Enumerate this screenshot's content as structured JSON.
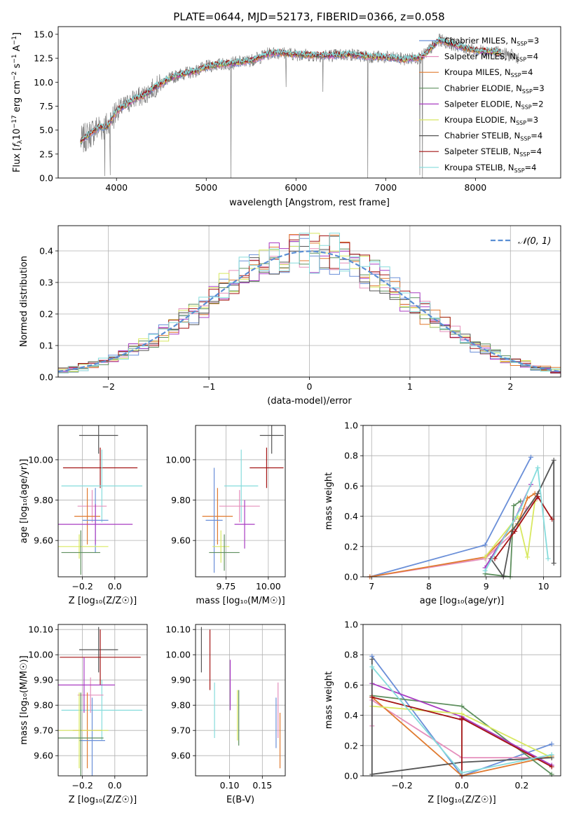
{
  "figure_title": "PLATE=0644, MJD=52173, FIBERID=0366, z=0.058",
  "models": [
    {
      "name": "Chabrier MILES",
      "nssp": "3",
      "color": "#6a8fd8"
    },
    {
      "name": "Salpeter MILES",
      "nssp": "4",
      "color": "#e58fbc"
    },
    {
      "name": "Kroupa MILES",
      "nssp": "4",
      "color": "#e07a2f"
    },
    {
      "name": "Chabrier ELODIE",
      "nssp": "3",
      "color": "#5e8f5e"
    },
    {
      "name": "Salpeter ELODIE",
      "nssp": "2",
      "color": "#a93cc2"
    },
    {
      "name": "Kroupa ELODIE",
      "nssp": "3",
      "color": "#d8e860"
    },
    {
      "name": "Chabrier STELIB",
      "nssp": "4",
      "color": "#555555"
    },
    {
      "name": "Salpeter STELIB",
      "nssp": "4",
      "color": "#a31414"
    },
    {
      "name": "Kroupa STELIB",
      "nssp": "4",
      "color": "#86dcdc"
    }
  ],
  "chart_data": [
    {
      "id": "spectrum",
      "type": "line",
      "xlabel_html": "wavelength [Angstrom, rest frame]",
      "ylabel_parts": [
        "Flux [",
        "f",
        "λ",
        "10",
        "−17",
        " erg cm",
        "−2",
        " s",
        "−1",
        " A",
        "−1",
        "]"
      ],
      "xlim": [
        3350,
        8950
      ],
      "ylim": [
        0,
        15.8
      ],
      "xticks": [
        4000,
        5000,
        6000,
        7000,
        8000
      ],
      "yticks": [
        0.0,
        2.5,
        5.0,
        7.5,
        10.0,
        12.5,
        15.0
      ],
      "legend_placement": "right",
      "data_range": [
        3600,
        8480
      ],
      "continuum_knots": [
        [
          3600,
          3.8
        ],
        [
          3700,
          4.6
        ],
        [
          3800,
          5.3
        ],
        [
          3900,
          5.4
        ],
        [
          4000,
          7.0
        ],
        [
          4100,
          7.6
        ],
        [
          4200,
          8.3
        ],
        [
          4300,
          8.6
        ],
        [
          4400,
          9.3
        ],
        [
          4500,
          9.9
        ],
        [
          4600,
          10.4
        ],
        [
          4700,
          10.8
        ],
        [
          4800,
          11.0
        ],
        [
          4900,
          11.2
        ],
        [
          5000,
          11.6
        ],
        [
          5100,
          11.8
        ],
        [
          5200,
          11.9
        ],
        [
          5300,
          12.0
        ],
        [
          5400,
          12.1
        ],
        [
          5500,
          12.3
        ],
        [
          5600,
          12.6
        ],
        [
          5700,
          13.0
        ],
        [
          5800,
          13.1
        ],
        [
          5900,
          13.0
        ],
        [
          6000,
          12.9
        ],
        [
          6200,
          12.8
        ],
        [
          6400,
          12.8
        ],
        [
          6600,
          12.9
        ],
        [
          6800,
          12.7
        ],
        [
          7000,
          12.6
        ],
        [
          7200,
          12.4
        ],
        [
          7400,
          12.6
        ],
        [
          7600,
          14.4
        ],
        [
          7800,
          13.8
        ],
        [
          8000,
          13.3
        ],
        [
          8200,
          13.2
        ],
        [
          8480,
          12.6
        ]
      ],
      "observed_drops": [
        [
          3870,
          0.2
        ],
        [
          3930,
          0.3
        ],
        [
          5275,
          0.0
        ],
        [
          5890,
          9.5
        ],
        [
          6300,
          9.0
        ],
        [
          6800,
          0.0
        ],
        [
          7380,
          0.3
        ],
        [
          7410,
          0.0
        ]
      ]
    },
    {
      "id": "residuals",
      "type": "histogram",
      "xlabel": "(data-model)/error",
      "ylabel": "Normed distribution",
      "xlim": [
        -2.5,
        2.5
      ],
      "ylim": [
        0,
        0.48
      ],
      "xticks": [
        -2,
        -1,
        0,
        1,
        2
      ],
      "yticks": [
        0.0,
        0.1,
        0.2,
        0.3,
        0.4
      ],
      "grid": true,
      "bin_width": 0.1,
      "reference_label": "𝒩(0, 1)",
      "reference_color": "#5b8fd4",
      "legend_placement": "top-right"
    },
    {
      "id": "age_vs_Z",
      "type": "errorbar",
      "xlabel": "Z [log₁₀(Z/Z☉)]",
      "ylabel": "age  [log₁₀(age/yr)]",
      "xlim": [
        -0.35,
        0.2
      ],
      "ylim": [
        9.42,
        10.17
      ],
      "xticks": [
        -0.2,
        0.0
      ],
      "yticks": [
        9.6,
        9.8,
        10.0
      ],
      "grid": true,
      "points": [
        {
          "model": 6,
          "x": -0.1,
          "xerr": 0.12,
          "y": 10.12,
          "yerr": 0.09
        },
        {
          "model": 7,
          "x": -0.09,
          "xerr": 0.23,
          "y": 9.96,
          "yerr": 0.1
        },
        {
          "model": 8,
          "x": -0.08,
          "xerr": 0.25,
          "y": 9.87,
          "yerr": 0.18
        },
        {
          "model": 1,
          "x": -0.14,
          "xerr": 0.09,
          "y": 9.77,
          "yerr": 0.08
        },
        {
          "model": 2,
          "x": -0.17,
          "xerr": 0.08,
          "y": 9.72,
          "yerr": 0.14
        },
        {
          "model": 0,
          "x": -0.12,
          "xerr": 0.08,
          "y": 9.7,
          "yerr": 0.16
        },
        {
          "model": 4,
          "x": -0.12,
          "xerr": 0.23,
          "y": 9.68,
          "yerr": 0.1
        },
        {
          "model": 5,
          "x": -0.22,
          "xerr": 0.18,
          "y": 9.57,
          "yerr": 0.06
        },
        {
          "model": 3,
          "x": -0.21,
          "xerr": 0.12,
          "y": 9.54,
          "yerr": 0.11
        }
      ]
    },
    {
      "id": "age_vs_mass",
      "type": "errorbar",
      "xlabel": "mass [log₁₀(M/M☉)]",
      "ylabel": "",
      "xlim": [
        9.57,
        10.1
      ],
      "ylim": [
        9.42,
        10.17
      ],
      "xticks": [
        9.75,
        10.0
      ],
      "yticks": [
        9.6,
        9.8,
        10.0
      ],
      "grid": true,
      "points": [
        {
          "model": 6,
          "x": 10.02,
          "xerr": 0.07,
          "y": 10.12,
          "yerr": 0.09
        },
        {
          "model": 7,
          "x": 9.99,
          "xerr": 0.1,
          "y": 9.96,
          "yerr": 0.1
        },
        {
          "model": 8,
          "x": 9.84,
          "xerr": 0.1,
          "y": 9.87,
          "yerr": 0.18
        },
        {
          "model": 1,
          "x": 9.83,
          "xerr": 0.12,
          "y": 9.77,
          "yerr": 0.08
        },
        {
          "model": 2,
          "x": 9.7,
          "xerr": 0.09,
          "y": 9.72,
          "yerr": 0.14
        },
        {
          "model": 0,
          "x": 9.68,
          "xerr": 0.05,
          "y": 9.7,
          "yerr": 0.26
        },
        {
          "model": 4,
          "x": 9.86,
          "xerr": 0.06,
          "y": 9.68,
          "yerr": 0.12
        },
        {
          "model": 5,
          "x": 9.72,
          "xerr": 0.05,
          "y": 9.57,
          "yerr": 0.08
        },
        {
          "model": 3,
          "x": 9.74,
          "xerr": 0.09,
          "y": 9.54,
          "yerr": 0.09
        }
      ]
    },
    {
      "id": "massweight_vs_age",
      "type": "line",
      "xlabel": "age  [log₁₀(age/yr)]",
      "ylabel": "mass weight",
      "xlim": [
        6.85,
        10.3
      ],
      "ylim": [
        0,
        1
      ],
      "xticks": [
        7,
        8,
        9,
        10
      ],
      "yticks": [
        0.0,
        0.2,
        0.4,
        0.6,
        0.8,
        1.0
      ],
      "grid": true,
      "series": [
        {
          "model": 0,
          "points": [
            [
              6.97,
              0.0
            ],
            [
              8.98,
              0.21
            ],
            [
              9.78,
              0.79
            ]
          ]
        },
        {
          "model": 1,
          "points": [
            [
              6.97,
              0.0
            ],
            [
              8.98,
              0.12
            ],
            [
              9.5,
              0.3
            ],
            [
              9.7,
              0.45
            ],
            [
              9.9,
              0.52
            ]
          ]
        },
        {
          "model": 2,
          "points": [
            [
              6.97,
              0.0
            ],
            [
              8.98,
              0.13
            ],
            [
              9.55,
              0.35
            ],
            [
              9.72,
              0.52
            ],
            [
              9.85,
              0.55
            ]
          ]
        },
        {
          "model": 3,
          "points": [
            [
              8.98,
              0.02
            ],
            [
              9.42,
              0.0
            ],
            [
              9.48,
              0.47
            ],
            [
              9.6,
              0.5
            ]
          ]
        },
        {
          "model": 4,
          "points": [
            [
              8.98,
              0.06
            ],
            [
              9.5,
              0.38
            ],
            [
              9.78,
              0.61
            ]
          ]
        },
        {
          "model": 5,
          "points": [
            [
              8.98,
              0.13
            ],
            [
              9.55,
              0.4
            ],
            [
              9.72,
              0.13
            ],
            [
              9.85,
              0.5
            ]
          ]
        },
        {
          "model": 6,
          "points": [
            [
              9.08,
              0.12
            ],
            [
              9.3,
              0.0
            ],
            [
              9.45,
              0.3
            ],
            [
              9.9,
              0.55
            ],
            [
              10.18,
              0.77
            ],
            [
              10.18,
              0.09
            ]
          ]
        },
        {
          "model": 7,
          "points": [
            [
              9.15,
              0.12
            ],
            [
              9.5,
              0.3
            ],
            [
              9.9,
              0.53
            ],
            [
              10.15,
              0.38
            ]
          ]
        },
        {
          "model": 8,
          "points": [
            [
              8.98,
              0.04
            ],
            [
              9.6,
              0.45
            ],
            [
              9.9,
              0.72
            ],
            [
              10.08,
              0.12
            ]
          ]
        }
      ]
    },
    {
      "id": "mass_vs_Z",
      "type": "errorbar",
      "xlabel": "Z [log₁₀(Z/Z☉)]",
      "ylabel": "mass [log₁₀(M/M☉)]",
      "xlim": [
        -0.35,
        0.2
      ],
      "ylim": [
        9.52,
        10.12
      ],
      "xticks": [
        -0.2,
        0.0
      ],
      "yticks": [
        9.6,
        9.7,
        9.8,
        9.9,
        10.0,
        10.1
      ],
      "grid": true,
      "points": [
        {
          "model": 6,
          "x": -0.1,
          "xerr": 0.12,
          "y": 10.02,
          "yerr": 0.09
        },
        {
          "model": 7,
          "x": -0.09,
          "xerr": 0.25,
          "y": 9.99,
          "yerr": 0.11
        },
        {
          "model": 8,
          "x": -0.08,
          "xerr": 0.25,
          "y": 9.78,
          "yerr": 0.12
        },
        {
          "model": 1,
          "x": -0.15,
          "xerr": 0.08,
          "y": 9.84,
          "yerr": 0.07
        },
        {
          "model": 2,
          "x": -0.17,
          "xerr": 0.09,
          "y": 9.7,
          "yerr": 0.15
        },
        {
          "model": 0,
          "x": -0.14,
          "xerr": 0.08,
          "y": 9.66,
          "yerr": 0.17
        },
        {
          "model": 4,
          "x": -0.19,
          "xerr": 0.19,
          "y": 9.88,
          "yerr": 0.11
        },
        {
          "model": 5,
          "x": -0.22,
          "xerr": 0.18,
          "y": 9.7,
          "yerr": 0.15
        },
        {
          "model": 3,
          "x": -0.21,
          "xerr": 0.14,
          "y": 9.67,
          "yerr": 0.18
        }
      ]
    },
    {
      "id": "mass_vs_ebv",
      "type": "errorbar",
      "xlabel": "E(B-V)",
      "ylabel": "",
      "xlim": [
        0.048,
        0.185
      ],
      "ylim": [
        9.52,
        10.12
      ],
      "xticks": [
        0.1,
        0.15
      ],
      "yticks": [
        9.6,
        9.7,
        9.8,
        9.9,
        10.0,
        10.1
      ],
      "grid": true,
      "points": [
        {
          "model": 6,
          "x": 0.057,
          "y": 10.02,
          "yerr": 0.09
        },
        {
          "model": 7,
          "x": 0.07,
          "y": 9.98,
          "yerr": 0.12
        },
        {
          "model": 8,
          "x": 0.077,
          "y": 9.78,
          "yerr": 0.11
        },
        {
          "model": 4,
          "x": 0.101,
          "y": 9.88,
          "yerr": 0.1
        },
        {
          "model": 5,
          "x": 0.112,
          "y": 9.76,
          "yerr": 0.1
        },
        {
          "model": 3,
          "x": 0.114,
          "y": 9.75,
          "yerr": 0.11
        },
        {
          "model": 0,
          "x": 0.171,
          "y": 9.73,
          "yerr": 0.1
        },
        {
          "model": 1,
          "x": 0.174,
          "y": 9.78,
          "yerr": 0.11
        },
        {
          "model": 2,
          "x": 0.177,
          "y": 9.66,
          "yerr": 0.11
        }
      ]
    },
    {
      "id": "massweight_vs_Z",
      "type": "line",
      "xlabel": "Z [log₁₀(Z/Z☉)]",
      "ylabel": "mass weight",
      "xlim": [
        -0.33,
        0.33
      ],
      "ylim": [
        0,
        1
      ],
      "xticks": [
        -0.2,
        0.0,
        0.2
      ],
      "yticks": [
        0.0,
        0.2,
        0.4,
        0.6,
        0.8,
        1.0
      ],
      "grid": true,
      "series": [
        {
          "model": 0,
          "points": [
            [
              -0.3,
              0.79
            ],
            [
              0.0,
              0.0
            ],
            [
              0.3,
              0.21
            ]
          ]
        },
        {
          "model": 1,
          "points": [
            [
              -0.3,
              0.33
            ],
            [
              -0.3,
              0.5
            ],
            [
              0.0,
              0.12
            ],
            [
              0.3,
              0.12
            ]
          ]
        },
        {
          "model": 2,
          "points": [
            [
              -0.3,
              0.52
            ],
            [
              0.0,
              0.0
            ],
            [
              0.3,
              0.13
            ]
          ]
        },
        {
          "model": 3,
          "points": [
            [
              -0.3,
              0.53
            ],
            [
              0.0,
              0.46
            ],
            [
              0.3,
              0.01
            ]
          ]
        },
        {
          "model": 4,
          "points": [
            [
              -0.3,
              0.61
            ],
            [
              0.0,
              0.39
            ],
            [
              0.3,
              0.07
            ]
          ]
        },
        {
          "model": 5,
          "points": [
            [
              -0.3,
              0.46
            ],
            [
              0.0,
              0.41
            ],
            [
              0.3,
              0.12
            ]
          ]
        },
        {
          "model": 6,
          "points": [
            [
              -0.3,
              0.77
            ],
            [
              -0.3,
              0.01
            ],
            [
              0.0,
              0.09
            ],
            [
              0.3,
              0.12
            ]
          ]
        },
        {
          "model": 7,
          "points": [
            [
              -0.3,
              0.52
            ],
            [
              0.0,
              0.37
            ],
            [
              0.0,
              0.0
            ],
            [
              0.0,
              0.38
            ],
            [
              0.3,
              0.06
            ]
          ]
        },
        {
          "model": 8,
          "points": [
            [
              -0.3,
              0.72
            ],
            [
              0.0,
              0.02
            ],
            [
              0.3,
              0.14
            ]
          ]
        }
      ]
    }
  ]
}
